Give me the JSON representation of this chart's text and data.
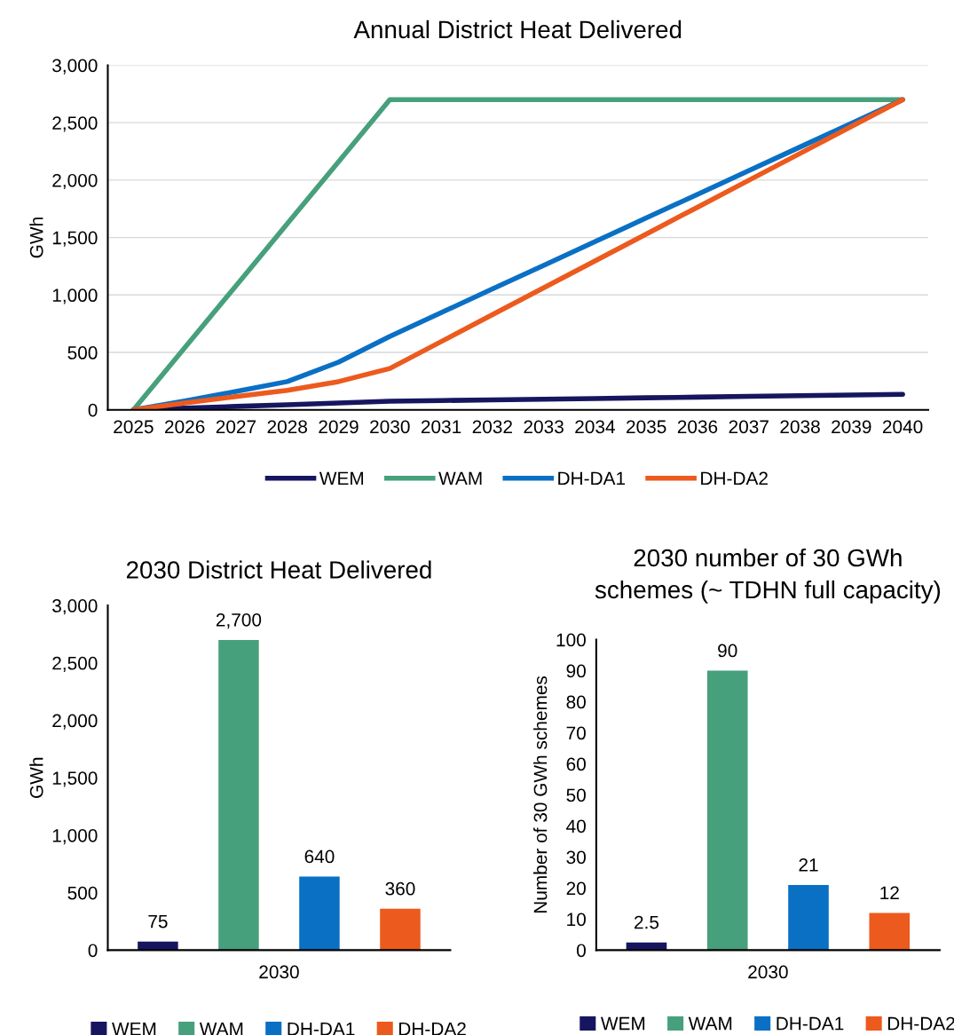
{
  "chart_data": [
    {
      "type": "line",
      "title": "Annual District Heat Delivered",
      "ylabel": "GWh",
      "categories": [
        "2025",
        "2026",
        "2027",
        "2028",
        "2029",
        "2030",
        "2031",
        "2032",
        "2033",
        "2034",
        "2035",
        "2036",
        "2037",
        "2038",
        "2039",
        "2040"
      ],
      "ylim": [
        0,
        3000
      ],
      "yticks": [
        {
          "value": 0,
          "label": "0"
        },
        {
          "value": 500,
          "label": "500"
        },
        {
          "value": 1000,
          "label": "1,000"
        },
        {
          "value": 1500,
          "label": "1,500"
        },
        {
          "value": 2000,
          "label": "2,000"
        },
        {
          "value": 2500,
          "label": "2,500"
        },
        {
          "value": 3000,
          "label": "3,000"
        }
      ],
      "grid": "y",
      "legend": "bottom",
      "marker": "none",
      "line_style": "solid",
      "series": [
        {
          "name": "WEM",
          "color": "#161660",
          "values": [
            0,
            15,
            30,
            45,
            60,
            75,
            81,
            87,
            93,
            99,
            105,
            111,
            117,
            123,
            129,
            135
          ]
        },
        {
          "name": "WAM",
          "color": "#47a07c",
          "values": [
            0,
            540,
            1080,
            1620,
            2160,
            2700,
            2700,
            2700,
            2700,
            2700,
            2700,
            2700,
            2700,
            2700,
            2700,
            2700
          ]
        },
        {
          "name": "DH-DA1",
          "color": "#0a70c4",
          "values": [
            0,
            77,
            160,
            246,
            415,
            640,
            846,
            1052,
            1258,
            1464,
            1670,
            1876,
            2082,
            2288,
            2494,
            2700
          ]
        },
        {
          "name": "DH-DA2",
          "color": "#ec5a1e",
          "values": [
            0,
            60,
            115,
            170,
            246,
            360,
            594,
            828,
            1062,
            1296,
            1530,
            1764,
            1998,
            2232,
            2466,
            2700
          ]
        }
      ]
    },
    {
      "type": "bar",
      "title": "2030 District Heat Delivered",
      "xlabel": "2030",
      "ylabel": "GWh",
      "categories": [
        null,
        null,
        null,
        null
      ],
      "ylim": [
        0,
        3000
      ],
      "yticks": [
        {
          "value": 0,
          "label": "0"
        },
        {
          "value": 500,
          "label": "500"
        },
        {
          "value": 1000,
          "label": "1,000"
        },
        {
          "value": 1500,
          "label": "1,500"
        },
        {
          "value": 2000,
          "label": "2,000"
        },
        {
          "value": 2500,
          "label": "2,500"
        },
        {
          "value": 3000,
          "label": "3,000"
        }
      ],
      "grid": false,
      "legend": "bottom",
      "series": [
        {
          "name": "WEM",
          "color": "#161660",
          "values": [
            75,
            null,
            null,
            null
          ],
          "value_labels": [
            "75",
            null,
            null,
            null
          ]
        },
        {
          "name": "WAM",
          "color": "#47a07c",
          "values": [
            null,
            2700,
            null,
            null
          ],
          "value_labels": [
            null,
            "2,700",
            null,
            null
          ]
        },
        {
          "name": "DH-DA1",
          "color": "#0a70c4",
          "values": [
            null,
            null,
            640,
            null
          ],
          "value_labels": [
            null,
            null,
            "640",
            null
          ]
        },
        {
          "name": "DH-DA2",
          "color": "#ec5a1e",
          "values": [
            null,
            null,
            null,
            360
          ],
          "value_labels": [
            null,
            null,
            null,
            "360"
          ]
        }
      ]
    },
    {
      "type": "bar",
      "title": "2030 number of 30 GWh schemes (~ TDHN full capacity)",
      "xlabel": "2030",
      "ylabel": "Number of 30 GWh schemes",
      "categories": [
        null,
        null,
        null,
        null
      ],
      "ylim": [
        0,
        100
      ],
      "yticks": [
        0,
        10,
        20,
        30,
        40,
        50,
        60,
        70,
        80,
        90,
        100
      ],
      "grid": false,
      "legend": "bottom",
      "data_labels": true,
      "series": [
        {
          "name": "WEM",
          "color": "#161660",
          "values": [
            2.5,
            null,
            null,
            null
          ]
        },
        {
          "name": "WAM",
          "color": "#47a07c",
          "values": [
            null,
            90,
            null,
            null
          ]
        },
        {
          "name": "DH-DA1",
          "color": "#0a70c4",
          "values": [
            null,
            null,
            21,
            null
          ]
        },
        {
          "name": "DH-DA2",
          "color": "#ec5a1e",
          "values": [
            null,
            null,
            null,
            12
          ]
        }
      ]
    }
  ]
}
